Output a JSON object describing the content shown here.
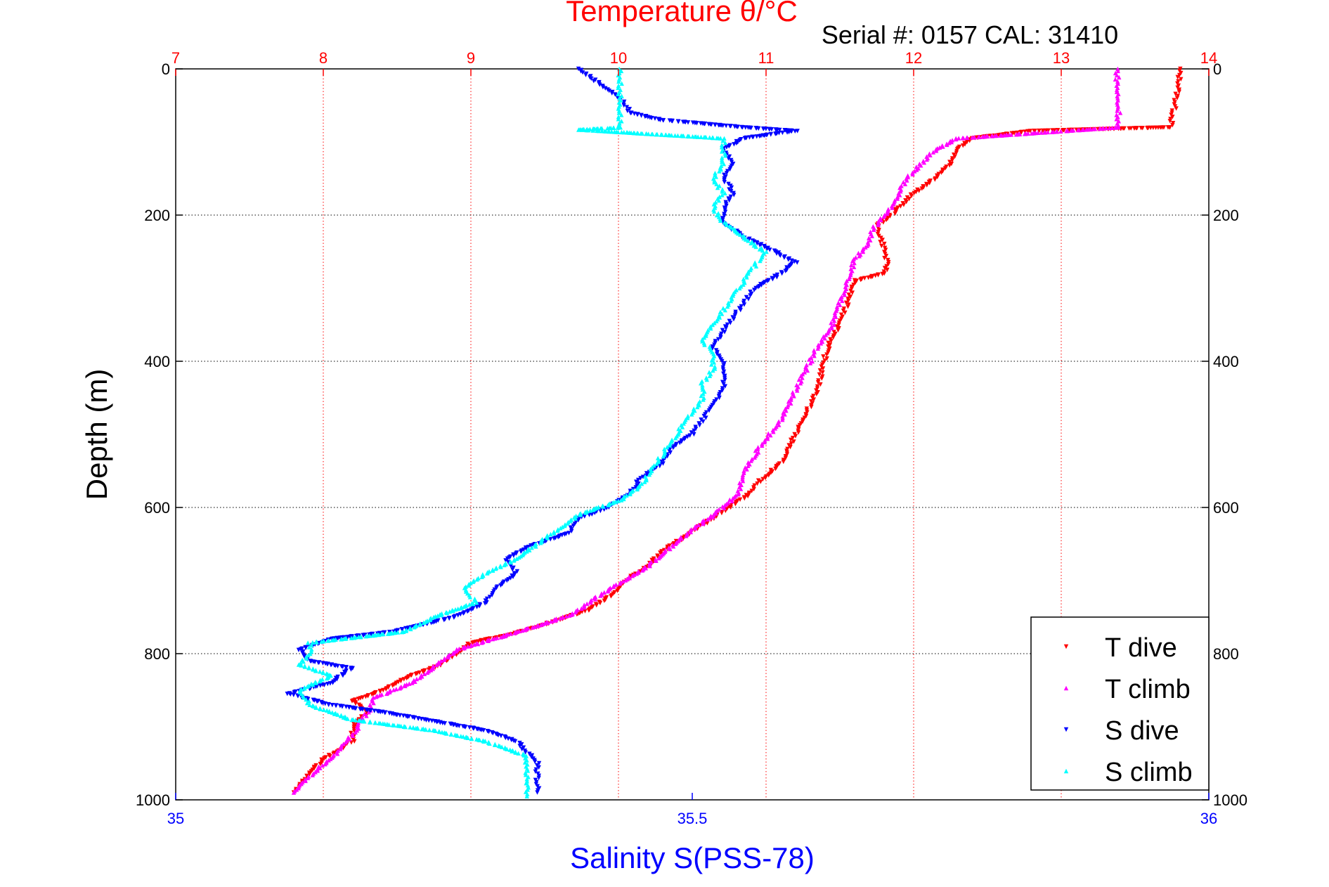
{
  "chart_data": {
    "type": "scatter",
    "title": "Temperature θ/°C",
    "subtitle": "Serial #: 0157  CAL: 31410",
    "ylabel": "Depth (m)",
    "xlabel_bottom": "Salinity S(PSS-78)",
    "ylim": [
      0,
      1000
    ],
    "y_reversed": true,
    "x_top": {
      "range": [
        7,
        14
      ],
      "ticks": [
        "7",
        "8",
        "9",
        "10",
        "11",
        "12",
        "13",
        "14"
      ]
    },
    "x_bottom": {
      "range": [
        35,
        36
      ],
      "ticks": [
        "35",
        "35.5",
        "36"
      ]
    },
    "y_ticks": [
      "0",
      "200",
      "400",
      "600",
      "800",
      "1000"
    ],
    "grid": true,
    "legend_position": "bottom-right",
    "colors": {
      "t_dive": "#ff0000",
      "t_climb": "#ff00ff",
      "s_dive": "#0000ff",
      "s_climb": "#00ffff",
      "top_axis": "#ff0000",
      "bottom_axis": "#0000ff"
    },
    "series": [
      {
        "name": "T dive",
        "axis": "top",
        "color": "#ff0000",
        "points": [
          [
            13.8,
            0
          ],
          [
            13.8,
            20
          ],
          [
            13.78,
            40
          ],
          [
            13.76,
            60
          ],
          [
            13.74,
            80
          ],
          [
            12.8,
            85
          ],
          [
            12.4,
            95
          ],
          [
            12.3,
            110
          ],
          [
            12.25,
            130
          ],
          [
            12.15,
            150
          ],
          [
            12.0,
            170
          ],
          [
            11.9,
            190
          ],
          [
            11.85,
            200
          ],
          [
            11.75,
            215
          ],
          [
            11.8,
            245
          ],
          [
            11.82,
            270
          ],
          [
            11.8,
            280
          ],
          [
            11.6,
            290
          ],
          [
            11.55,
            320
          ],
          [
            11.5,
            350
          ],
          [
            11.42,
            380
          ],
          [
            11.38,
            410
          ],
          [
            11.35,
            440
          ],
          [
            11.3,
            460
          ],
          [
            11.25,
            480
          ],
          [
            11.2,
            500
          ],
          [
            11.1,
            540
          ],
          [
            10.95,
            565
          ],
          [
            10.9,
            580
          ],
          [
            10.75,
            600
          ],
          [
            10.6,
            620
          ],
          [
            10.45,
            640
          ],
          [
            10.3,
            660
          ],
          [
            10.2,
            680
          ],
          [
            10.05,
            700
          ],
          [
            9.95,
            720
          ],
          [
            9.8,
            740
          ],
          [
            9.5,
            760
          ],
          [
            9.25,
            775
          ],
          [
            9.0,
            785
          ],
          [
            8.9,
            800
          ],
          [
            8.8,
            815
          ],
          [
            8.6,
            830
          ],
          [
            8.4,
            850
          ],
          [
            8.2,
            865
          ],
          [
            8.3,
            880
          ],
          [
            8.2,
            900
          ],
          [
            8.2,
            920
          ],
          [
            8.0,
            945
          ],
          [
            7.9,
            965
          ],
          [
            7.8,
            990
          ]
        ]
      },
      {
        "name": "T climb",
        "axis": "top",
        "color": "#ff00ff",
        "points": [
          [
            13.38,
            0
          ],
          [
            13.38,
            20
          ],
          [
            13.38,
            40
          ],
          [
            13.39,
            60
          ],
          [
            13.38,
            80
          ],
          [
            12.3,
            95
          ],
          [
            12.15,
            110
          ],
          [
            12.05,
            130
          ],
          [
            11.95,
            150
          ],
          [
            11.9,
            170
          ],
          [
            11.85,
            190
          ],
          [
            11.8,
            200
          ],
          [
            11.72,
            220
          ],
          [
            11.7,
            240
          ],
          [
            11.6,
            260
          ],
          [
            11.55,
            290
          ],
          [
            11.5,
            320
          ],
          [
            11.45,
            350
          ],
          [
            11.35,
            380
          ],
          [
            11.3,
            400
          ],
          [
            11.25,
            420
          ],
          [
            11.2,
            440
          ],
          [
            11.15,
            460
          ],
          [
            11.1,
            480
          ],
          [
            10.95,
            520
          ],
          [
            10.85,
            550
          ],
          [
            10.82,
            580
          ],
          [
            10.65,
            610
          ],
          [
            10.5,
            630
          ],
          [
            10.35,
            655
          ],
          [
            10.2,
            680
          ],
          [
            9.95,
            710
          ],
          [
            9.8,
            730
          ],
          [
            9.7,
            745
          ],
          [
            9.4,
            765
          ],
          [
            9.15,
            780
          ],
          [
            8.9,
            795
          ],
          [
            8.8,
            810
          ],
          [
            8.6,
            840
          ],
          [
            8.35,
            860
          ],
          [
            8.3,
            880
          ],
          [
            8.25,
            895
          ],
          [
            8.2,
            910
          ],
          [
            8.1,
            935
          ],
          [
            7.95,
            960
          ],
          [
            7.8,
            990
          ]
        ]
      },
      {
        "name": "S dive",
        "axis": "bottom",
        "color": "#0000ff",
        "points": [
          [
            35.39,
            0
          ],
          [
            35.41,
            20
          ],
          [
            35.43,
            40
          ],
          [
            35.44,
            60
          ],
          [
            35.47,
            70
          ],
          [
            35.55,
            80
          ],
          [
            35.6,
            85
          ],
          [
            35.55,
            95
          ],
          [
            35.53,
            110
          ],
          [
            35.54,
            130
          ],
          [
            35.53,
            150
          ],
          [
            35.54,
            170
          ],
          [
            35.53,
            190
          ],
          [
            35.53,
            210
          ],
          [
            35.55,
            230
          ],
          [
            35.58,
            250
          ],
          [
            35.6,
            265
          ],
          [
            35.58,
            285
          ],
          [
            35.56,
            300
          ],
          [
            35.55,
            320
          ],
          [
            35.54,
            340
          ],
          [
            35.53,
            360
          ],
          [
            35.52,
            380
          ],
          [
            35.53,
            400
          ],
          [
            35.53,
            420
          ],
          [
            35.53,
            440
          ],
          [
            35.52,
            460
          ],
          [
            35.51,
            480
          ],
          [
            35.5,
            500
          ],
          [
            35.48,
            520
          ],
          [
            35.47,
            540
          ],
          [
            35.45,
            560
          ],
          [
            35.44,
            580
          ],
          [
            35.42,
            600
          ],
          [
            35.39,
            615
          ],
          [
            35.38,
            635
          ],
          [
            35.34,
            655
          ],
          [
            35.32,
            670
          ],
          [
            35.33,
            690
          ],
          [
            35.31,
            710
          ],
          [
            35.3,
            730
          ],
          [
            35.27,
            750
          ],
          [
            35.21,
            770
          ],
          [
            35.15,
            780
          ],
          [
            35.12,
            795
          ],
          [
            35.13,
            810
          ],
          [
            35.17,
            820
          ],
          [
            35.15,
            840
          ],
          [
            35.11,
            855
          ],
          [
            35.15,
            870
          ],
          [
            35.2,
            880
          ],
          [
            35.24,
            890
          ],
          [
            35.3,
            905
          ],
          [
            35.33,
            920
          ],
          [
            35.34,
            935
          ],
          [
            35.35,
            950
          ],
          [
            35.35,
            970
          ],
          [
            35.35,
            990
          ]
        ]
      },
      {
        "name": "S climb",
        "axis": "bottom",
        "color": "#00ffff",
        "points": [
          [
            35.43,
            0
          ],
          [
            35.43,
            20
          ],
          [
            35.43,
            40
          ],
          [
            35.43,
            60
          ],
          [
            35.43,
            80
          ],
          [
            35.39,
            83
          ],
          [
            35.53,
            95
          ],
          [
            35.53,
            110
          ],
          [
            35.53,
            130
          ],
          [
            35.52,
            150
          ],
          [
            35.53,
            170
          ],
          [
            35.52,
            190
          ],
          [
            35.53,
            210
          ],
          [
            35.55,
            230
          ],
          [
            35.57,
            250
          ],
          [
            35.56,
            270
          ],
          [
            35.55,
            290
          ],
          [
            35.54,
            310
          ],
          [
            35.53,
            330
          ],
          [
            35.52,
            350
          ],
          [
            35.51,
            370
          ],
          [
            35.52,
            390
          ],
          [
            35.52,
            410
          ],
          [
            35.51,
            430
          ],
          [
            35.51,
            450
          ],
          [
            35.5,
            470
          ],
          [
            35.49,
            490
          ],
          [
            35.48,
            510
          ],
          [
            35.47,
            530
          ],
          [
            35.46,
            550
          ],
          [
            35.45,
            570
          ],
          [
            35.43,
            590
          ],
          [
            35.39,
            610
          ],
          [
            35.37,
            630
          ],
          [
            35.35,
            650
          ],
          [
            35.33,
            670
          ],
          [
            35.3,
            690
          ],
          [
            35.28,
            710
          ],
          [
            35.29,
            730
          ],
          [
            35.25,
            750
          ],
          [
            35.22,
            770
          ],
          [
            35.13,
            785
          ],
          [
            35.13,
            800
          ],
          [
            35.12,
            815
          ],
          [
            35.15,
            830
          ],
          [
            35.12,
            850
          ],
          [
            35.13,
            870
          ],
          [
            35.17,
            890
          ],
          [
            35.25,
            905
          ],
          [
            35.3,
            920
          ],
          [
            35.34,
            940
          ],
          [
            35.34,
            960
          ],
          [
            35.34,
            980
          ],
          [
            35.34,
            995
          ]
        ]
      }
    ]
  }
}
